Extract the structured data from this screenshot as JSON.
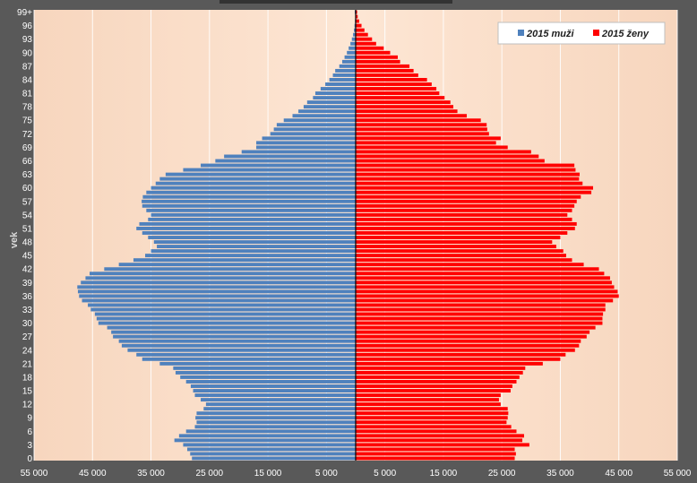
{
  "chart_data": {
    "type": "bar",
    "orientation": "horizontal",
    "subtype": "population-pyramid",
    "ylabel": "vek",
    "y_tick_labels": [
      "0",
      "3",
      "6",
      "9",
      "12",
      "15",
      "18",
      "21",
      "24",
      "27",
      "30",
      "33",
      "36",
      "39",
      "42",
      "45",
      "48",
      "51",
      "54",
      "57",
      "60",
      "63",
      "66",
      "69",
      "72",
      "75",
      "78",
      "81",
      "84",
      "87",
      "90",
      "93",
      "96",
      "99+"
    ],
    "x_tick_labels": [
      "55 000",
      "45 000",
      "35 000",
      "25 000",
      "15 000",
      "5 000",
      "5 000",
      "15 000",
      "25 000",
      "35 000",
      "45 000",
      "55 000"
    ],
    "xlim": [
      -55000,
      55000
    ],
    "grid": true,
    "legend_position": "top-right",
    "categories": [
      "0",
      "1",
      "2",
      "3",
      "4",
      "5",
      "6",
      "7",
      "8",
      "9",
      "10",
      "11",
      "12",
      "13",
      "14",
      "15",
      "16",
      "17",
      "18",
      "19",
      "20",
      "21",
      "22",
      "23",
      "24",
      "25",
      "26",
      "27",
      "28",
      "29",
      "30",
      "31",
      "32",
      "33",
      "34",
      "35",
      "36",
      "37",
      "38",
      "39",
      "40",
      "41",
      "42",
      "43",
      "44",
      "45",
      "46",
      "47",
      "48",
      "49",
      "50",
      "51",
      "52",
      "53",
      "54",
      "55",
      "56",
      "57",
      "58",
      "59",
      "60",
      "61",
      "62",
      "63",
      "64",
      "65",
      "66",
      "67",
      "68",
      "69",
      "70",
      "71",
      "72",
      "73",
      "74",
      "75",
      "76",
      "77",
      "78",
      "79",
      "80",
      "81",
      "82",
      "83",
      "84",
      "85",
      "86",
      "87",
      "88",
      "89",
      "90",
      "91",
      "92",
      "93",
      "94",
      "95",
      "96",
      "97",
      "98",
      "99+"
    ],
    "series": [
      {
        "name": "2015 muži",
        "color": "#4f81bd",
        "values": [
          28000,
          28300,
          28800,
          29500,
          31000,
          30200,
          29000,
          27500,
          27200,
          27400,
          27200,
          26000,
          25600,
          26500,
          27500,
          27800,
          28200,
          29000,
          30000,
          30800,
          31200,
          33500,
          36500,
          37500,
          39000,
          40000,
          40500,
          41500,
          41800,
          42500,
          44000,
          44300,
          44600,
          45300,
          45800,
          46800,
          47300,
          47500,
          47600,
          47000,
          46200,
          45500,
          43000,
          40500,
          38000,
          36000,
          35000,
          34000,
          34500,
          35500,
          36500,
          37500,
          37000,
          35500,
          35000,
          35800,
          36500,
          36600,
          36400,
          35800,
          35000,
          34200,
          33500,
          32500,
          29500,
          26500,
          24000,
          22500,
          19500,
          17000,
          17000,
          16000,
          14600,
          14000,
          13500,
          12300,
          10800,
          9800,
          8900,
          8300,
          7300,
          6900,
          6000,
          5200,
          4500,
          3900,
          3500,
          2800,
          2300,
          1900,
          1500,
          1200,
          900,
          650,
          450,
          300,
          200,
          120,
          80,
          150
        ]
      },
      {
        "name": "2015 ženy",
        "color": "#ff0000",
        "values": [
          27200,
          27400,
          27200,
          29700,
          28500,
          28800,
          27500,
          26600,
          25800,
          26000,
          26100,
          26000,
          24800,
          24500,
          24800,
          26500,
          26800,
          27500,
          28000,
          28600,
          29000,
          32000,
          35000,
          35900,
          37500,
          38200,
          38500,
          39500,
          40000,
          41000,
          42200,
          42200,
          42300,
          42700,
          42700,
          44000,
          45000,
          44800,
          44200,
          43800,
          43500,
          42500,
          41600,
          39000,
          37000,
          36000,
          35500,
          34300,
          33600,
          35000,
          36200,
          37500,
          37800,
          37000,
          36200,
          37000,
          37400,
          37800,
          38500,
          40300,
          40600,
          38800,
          38200,
          38300,
          37600,
          37400,
          32300,
          31300,
          30000,
          26000,
          24000,
          24800,
          22800,
          22500,
          22400,
          21400,
          19000,
          17400,
          16700,
          16200,
          15200,
          14300,
          13800,
          13000,
          12200,
          10700,
          9900,
          9200,
          7600,
          7200,
          5900,
          4800,
          3500,
          2800,
          2100,
          1500,
          1000,
          600,
          350,
          250
        ]
      }
    ]
  }
}
